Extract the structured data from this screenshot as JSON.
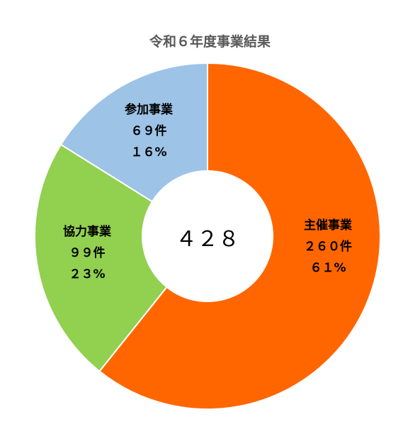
{
  "chart_data": {
    "type": "donut",
    "title": "令和６年度事業結果",
    "center_label": "４２８",
    "total": 428,
    "slices": [
      {
        "name": "主催事業",
        "count": 260,
        "count_label": "２６０件",
        "percent_label": "６１%",
        "color": "#ff6600"
      },
      {
        "name": "協力事業",
        "count": 99,
        "count_label": "９９件",
        "percent_label": "２３%",
        "color": "#92d050"
      },
      {
        "name": "参加事業",
        "count": 69,
        "count_label": "６９件",
        "percent_label": "１６%",
        "color": "#9dc3e6"
      }
    ]
  }
}
